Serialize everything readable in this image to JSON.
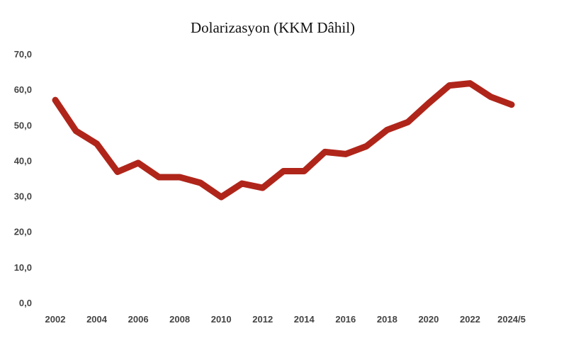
{
  "chart_data": {
    "type": "line",
    "title": "Dolarizasyon (KKM Dâhil)",
    "xlabel": "",
    "ylabel": "",
    "x": [
      "2002",
      "2003",
      "2004",
      "2005",
      "2006",
      "2007",
      "2008",
      "2009",
      "2010",
      "2011",
      "2012",
      "2013",
      "2014",
      "2015",
      "2016",
      "2017",
      "2018",
      "2019",
      "2020",
      "2021",
      "2022",
      "2023",
      "2024/5"
    ],
    "x_tick_labels": [
      "2002",
      "2004",
      "2006",
      "2008",
      "2010",
      "2012",
      "2014",
      "2016",
      "2018",
      "2020",
      "2022",
      "2024/5"
    ],
    "y_tick_labels": [
      "0,0",
      "10,0",
      "20,0",
      "30,0",
      "40,0",
      "50,0",
      "60,0",
      "70,0"
    ],
    "ylim": [
      0,
      70
    ],
    "grid": false,
    "series": [
      {
        "name": "Dolarizasyon",
        "color": "#b0251a",
        "values": [
          57.0,
          48.3,
          44.7,
          36.8,
          39.3,
          35.3,
          35.3,
          33.7,
          29.7,
          33.5,
          32.3,
          37.0,
          37.0,
          42.4,
          41.8,
          44.0,
          48.6,
          50.8,
          56.1,
          61.1,
          61.7,
          57.9,
          55.7
        ]
      }
    ]
  }
}
